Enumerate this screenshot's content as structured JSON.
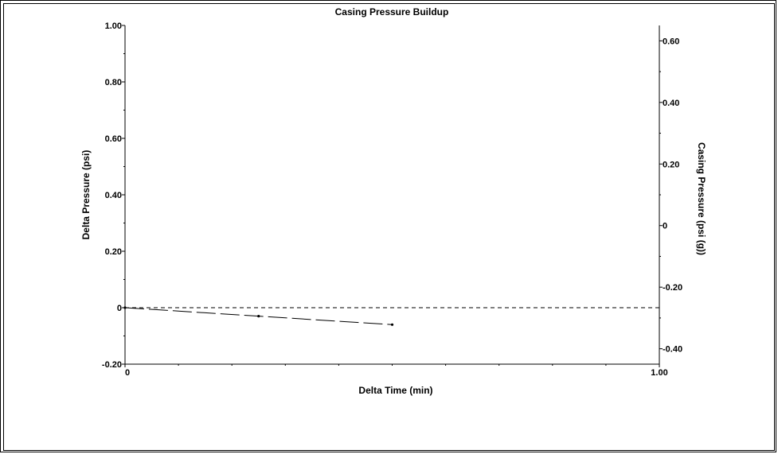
{
  "chart_data": {
    "type": "line",
    "title": "Casing Pressure Buildup",
    "xlabel": "Delta Time (min)",
    "ylabel": "Delta Pressure (psi)",
    "y2label": "Casing Pressure (psi (g))",
    "xlim": [
      0,
      1.0
    ],
    "ylim": [
      -0.2,
      1.0
    ],
    "y2lim": [
      -0.45,
      0.65
    ],
    "x_ticks": [
      {
        "value": 0,
        "label": "0"
      },
      {
        "value": 1.0,
        "label": "1.00"
      }
    ],
    "y_ticks": [
      {
        "value": 1.0,
        "label": "1.00"
      },
      {
        "value": 0.8,
        "label": "0.80"
      },
      {
        "value": 0.6,
        "label": "0.60"
      },
      {
        "value": 0.4,
        "label": "0.40"
      },
      {
        "value": 0.2,
        "label": "0.20"
      },
      {
        "value": 0,
        "label": "0"
      },
      {
        "value": -0.2,
        "label": "-0.20"
      }
    ],
    "y2_ticks": [
      {
        "value": 0.6,
        "label": "0.60"
      },
      {
        "value": 0.4,
        "label": "0.40"
      },
      {
        "value": 0.2,
        "label": "0.20"
      },
      {
        "value": 0,
        "label": "0"
      },
      {
        "value": -0.2,
        "label": "-0.20"
      },
      {
        "value": -0.4,
        "label": "-0.40"
      }
    ],
    "series": [
      {
        "axis": "left",
        "style": "short-dash",
        "x": [
          0,
          1.0
        ],
        "y": [
          0,
          0
        ]
      },
      {
        "axis": "left",
        "style": "long-dash",
        "markers": true,
        "x": [
          0,
          0.25,
          0.5
        ],
        "y": [
          0,
          -0.03,
          -0.06
        ]
      }
    ]
  }
}
